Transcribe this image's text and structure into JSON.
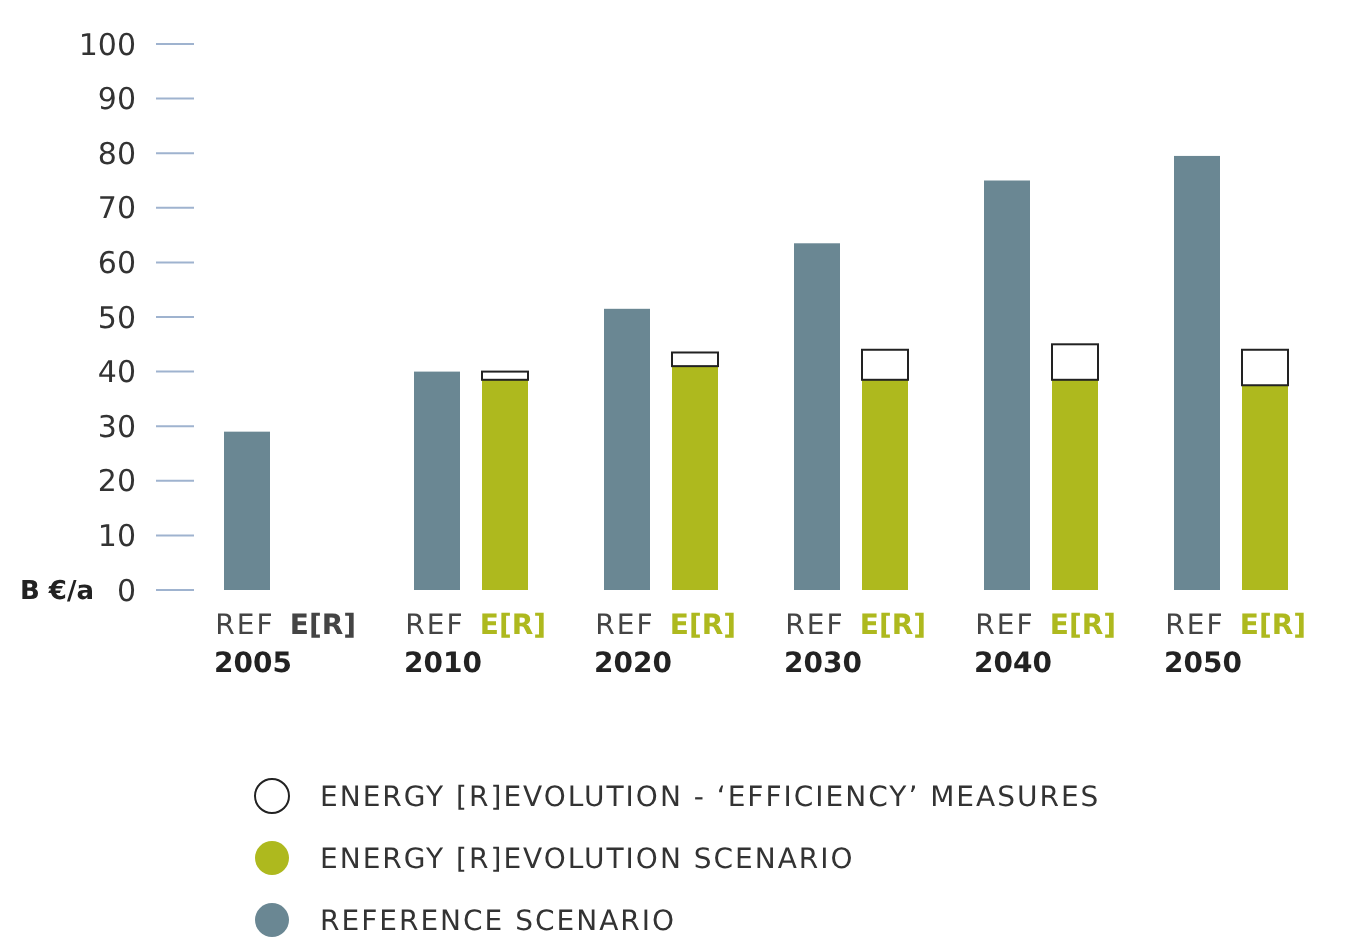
{
  "chart_data": {
    "type": "bar",
    "ylabel": "B €/a",
    "stacked": true,
    "categories": [
      "REF",
      "E[R]",
      "REF",
      "E[R]",
      "REF",
      "E[R]",
      "REF",
      "E[R]",
      "REF",
      "E[R]",
      "REF",
      "E[R]"
    ],
    "series": [
      {
        "name": "REFERENCE SCENARIO",
        "color": "#6a8793",
        "values": [
          29,
          null,
          40,
          null,
          51.5,
          null,
          63.5,
          null,
          75,
          null,
          79.5,
          null
        ]
      },
      {
        "name": "ENERGY [R]EVOLUTION SCENARIO",
        "color": "#aeb91e",
        "values": [
          null,
          null,
          null,
          38.5,
          null,
          41,
          null,
          38.5,
          null,
          38.5,
          null,
          37.5
        ]
      },
      {
        "name": "ENERGY [R]EVOLUTION - ‘EFFICIENCY’ MEASURES",
        "color": "#ffffff",
        "values": [
          null,
          null,
          null,
          1.5,
          null,
          2.5,
          null,
          5.5,
          null,
          6.5,
          null,
          6.5
        ]
      }
    ],
    "ylim": [
      0,
      100
    ],
    "yticks": [
      0,
      10,
      20,
      30,
      40,
      50,
      60,
      70,
      80,
      90,
      100
    ],
    "legend": "bottom",
    "annotations": [
      "2005",
      "2010",
      "2020",
      "2030",
      "2040",
      "2050"
    ]
  }
}
